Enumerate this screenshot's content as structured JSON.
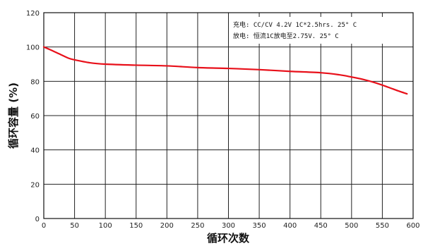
{
  "chart_data": {
    "type": "line",
    "xlabel": "循环次数",
    "ylabel": "循环容量 (%)",
    "xlim": [
      0,
      600
    ],
    "ylim": [
      0,
      120
    ],
    "xticks": [
      0,
      50,
      100,
      150,
      200,
      250,
      300,
      350,
      400,
      450,
      500,
      550,
      600
    ],
    "yticks": [
      0,
      20,
      40,
      60,
      80,
      100,
      120
    ],
    "grid": true,
    "annotations": [
      "充电: CC/CV 4.2V 1C*2.5hrs. 25° C",
      "放电: 恒流1C放电至2.75V. 25° C"
    ],
    "series": [
      {
        "color": "#e8101a",
        "x": [
          0,
          10,
          25,
          40,
          50,
          75,
          100,
          150,
          200,
          250,
          300,
          350,
          400,
          450,
          480,
          500,
          520,
          540,
          560,
          575,
          590
        ],
        "y": [
          100,
          98.5,
          96,
          93.5,
          92.5,
          90.8,
          90,
          89.4,
          89,
          88,
          87.5,
          86.8,
          85.8,
          85,
          83.8,
          82.5,
          81,
          79,
          76.5,
          74.5,
          72.7
        ]
      }
    ]
  }
}
